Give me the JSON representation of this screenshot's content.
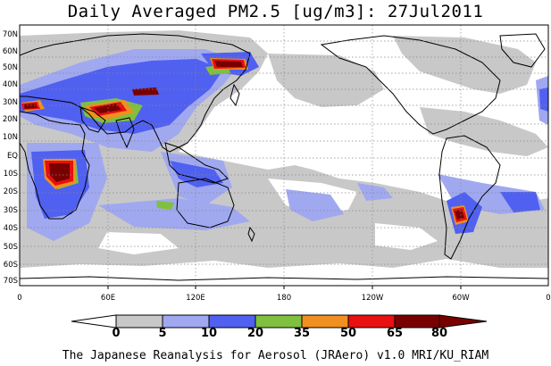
{
  "title": "Daily Averaged PM2.5 [ug/m3]: 27Jul2011",
  "footer": "The Japanese Reanalysis for Aerosol (JRAero) v1.0 MRI/KU_RIAM",
  "lat_labels": [
    "70N",
    "60N",
    "50N",
    "40N",
    "30N",
    "20N",
    "10N",
    "EQ",
    "10S",
    "20S",
    "30S",
    "40S",
    "50S",
    "60S",
    "70S"
  ],
  "lon_labels": [
    "0",
    "60E",
    "120E",
    "180",
    "120W",
    "60W",
    "0"
  ],
  "colorbar": {
    "ticks": [
      "0",
      "5",
      "10",
      "20",
      "35",
      "50",
      "65",
      "80"
    ],
    "colors": [
      "#ffffff",
      "#c8c8c8",
      "#a0a8f0",
      "#5060f0",
      "#80c040",
      "#f09020",
      "#e81010",
      "#7a0000"
    ]
  },
  "chart_data": {
    "type": "heatmap",
    "title": "Daily Averaged PM2.5 [ug/m3]: 27Jul2011",
    "variable": "PM2.5",
    "units": "ug/m3",
    "date": "27Jul2011",
    "x_ticks": [
      "0",
      "60E",
      "120E",
      "180",
      "120W",
      "60W",
      "0"
    ],
    "y_ticks": [
      "70N",
      "60N",
      "50N",
      "40N",
      "30N",
      "20N",
      "10N",
      "EQ",
      "10S",
      "20S",
      "30S",
      "40S",
      "50S",
      "60S",
      "70S"
    ],
    "color_levels": [
      0,
      5,
      10,
      20,
      35,
      50,
      65,
      80
    ],
    "grid": true
  }
}
